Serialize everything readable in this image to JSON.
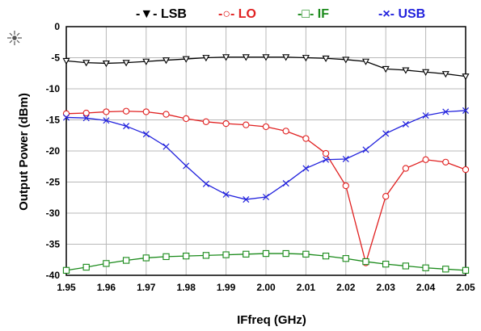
{
  "chart_data": {
    "type": "line",
    "xlabel": "IFfreq (GHz)",
    "ylabel": "Output Power (dBm)",
    "xlim": [
      1.95,
      2.05
    ],
    "ylim": [
      -40,
      0
    ],
    "grid": true,
    "legend_position": "top",
    "x": [
      1.95,
      1.955,
      1.96,
      1.965,
      1.97,
      1.975,
      1.98,
      1.985,
      1.99,
      1.995,
      2.0,
      2.005,
      2.01,
      2.015,
      2.02,
      2.025,
      2.03,
      2.035,
      2.04,
      2.045,
      2.05
    ],
    "x_ticks": [
      "1.95",
      "1.96",
      "1.97",
      "1.98",
      "1.99",
      "2.00",
      "2.01",
      "2.02",
      "2.03",
      "2.04",
      "2.05"
    ],
    "y_ticks": [
      "0",
      "-5",
      "-10",
      "-15",
      "-20",
      "-25",
      "-30",
      "-35",
      "-40"
    ],
    "series": [
      {
        "name": "LSB",
        "legend_label": "-▼- LSB",
        "color": "#000000",
        "marker": "triangle-down",
        "values": [
          -5.5,
          -5.8,
          -5.9,
          -5.8,
          -5.6,
          -5.4,
          -5.2,
          -5.0,
          -4.9,
          -4.9,
          -4.9,
          -4.9,
          -5.0,
          -5.1,
          -5.3,
          -5.6,
          -6.8,
          -7.0,
          -7.3,
          -7.6,
          -8.0
        ]
      },
      {
        "name": "LO",
        "legend_label": "-○- LO",
        "color": "#e02020",
        "marker": "circle",
        "values": [
          -14.0,
          -13.9,
          -13.7,
          -13.6,
          -13.7,
          -14.1,
          -14.8,
          -15.3,
          -15.6,
          -15.8,
          -16.1,
          -16.8,
          -18.0,
          -20.4,
          -25.6,
          -38.0,
          -27.3,
          -22.8,
          -21.4,
          -21.8,
          -23.0
        ]
      },
      {
        "name": "IF",
        "legend_label": "-□- IF",
        "color": "#1a8a1a",
        "marker": "square",
        "values": [
          -39.2,
          -38.7,
          -38.1,
          -37.6,
          -37.2,
          -37.0,
          -36.9,
          -36.8,
          -36.7,
          -36.6,
          -36.5,
          -36.5,
          -36.6,
          -36.9,
          -37.3,
          -37.8,
          -38.2,
          -38.5,
          -38.8,
          -39.0,
          -39.2
        ]
      },
      {
        "name": "USB",
        "legend_label": "-×- USB",
        "color": "#2222dd",
        "marker": "x",
        "values": [
          -14.6,
          -14.7,
          -15.1,
          -16.0,
          -17.3,
          -19.3,
          -22.4,
          -25.3,
          -27.0,
          -27.8,
          -27.4,
          -25.2,
          -22.8,
          -21.4,
          -21.3,
          -19.8,
          -17.2,
          -15.7,
          -14.3,
          -13.7,
          -13.5
        ]
      }
    ]
  }
}
